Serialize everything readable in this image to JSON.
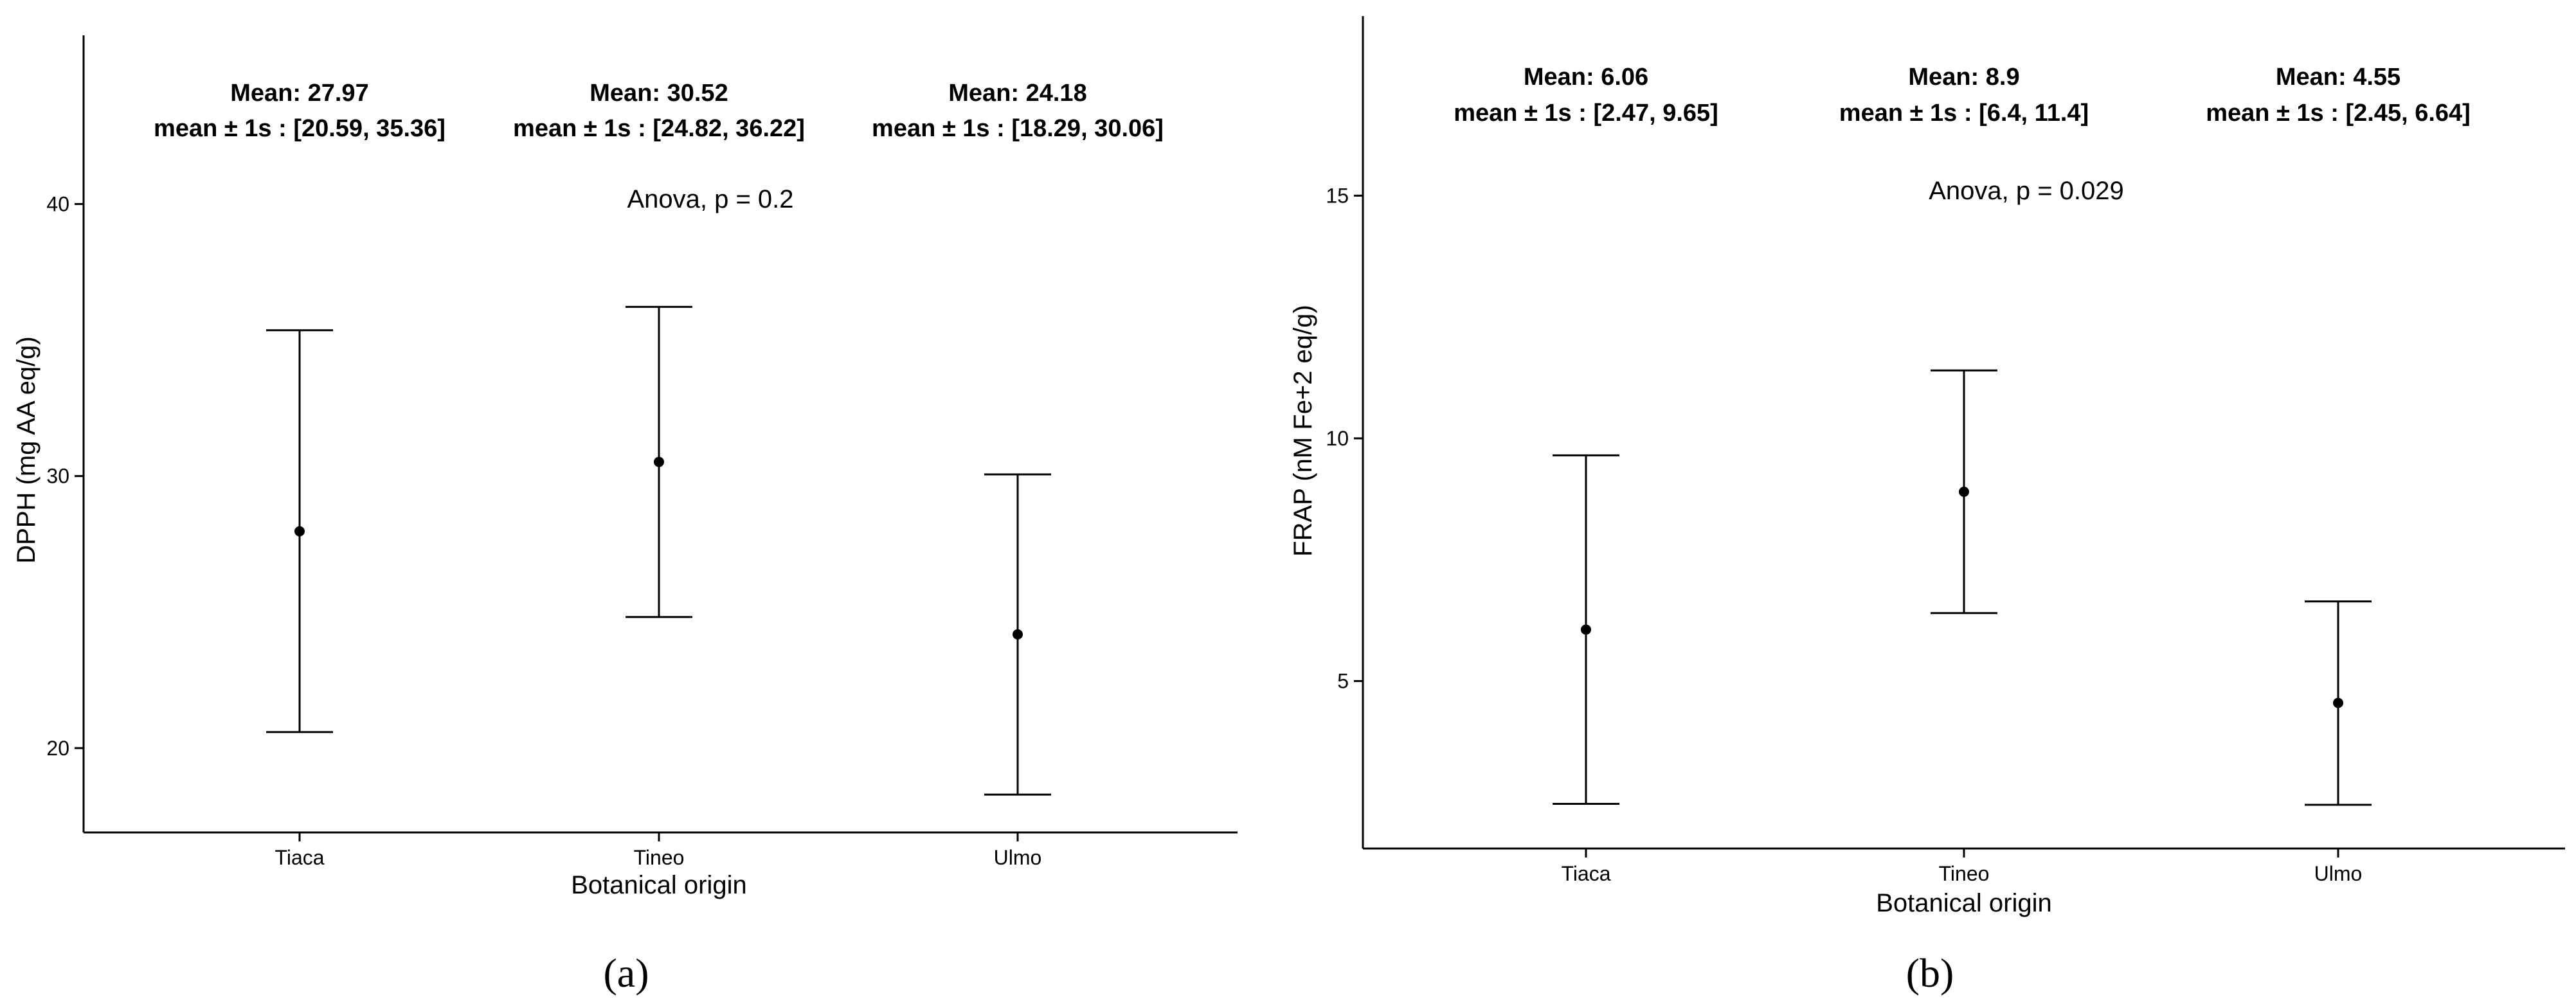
{
  "chart_data": [
    {
      "type": "errorbar",
      "panel_label": "(a)",
      "xlabel": "Botanical origin",
      "ylabel": "DPPH (mg AA eq/g)",
      "categories": [
        "Tiaca",
        "Tineo",
        "Ulmo"
      ],
      "ylim": [
        16.9,
        46.2
      ],
      "yticks": [
        20,
        30,
        40
      ],
      "grid": false,
      "series": [
        {
          "means": [
            27.97,
            30.52,
            24.18
          ],
          "lower": [
            20.59,
            24.82,
            18.29
          ],
          "upper": [
            35.36,
            36.22,
            30.06
          ]
        }
      ],
      "annotations": {
        "means": [
          "Mean: 27.97",
          "Mean: 30.52",
          "Mean: 24.18"
        ],
        "ranges": [
          "mean ± 1s : [20.59, 35.36]",
          "mean ± 1s : [24.82, 36.22]",
          "mean ± 1s : [18.29, 30.06]"
        ],
        "test": "Anova, p = 0.2"
      }
    },
    {
      "type": "errorbar",
      "panel_label": "(b)",
      "xlabel": "Botanical origin",
      "ylabel": "FRAP (nM Fe+2 eq/g)",
      "categories": [
        "Tiaca",
        "Tineo",
        "Ulmo"
      ],
      "ylim": [
        1.55,
        18.7
      ],
      "yticks": [
        5,
        10,
        15
      ],
      "grid": false,
      "series": [
        {
          "means": [
            6.06,
            8.9,
            4.55
          ],
          "lower": [
            2.47,
            6.4,
            2.45
          ],
          "upper": [
            9.65,
            11.4,
            6.64
          ]
        }
      ],
      "annotations": {
        "means": [
          "Mean: 6.06",
          "Mean: 8.9",
          "Mean: 4.55"
        ],
        "ranges": [
          "mean ± 1s : [2.47, 9.65]",
          "mean ± 1s : [6.4, 11.4]",
          "mean ± 1s : [2.45, 6.64]"
        ],
        "test": "Anova, p = 0.029"
      }
    }
  ]
}
